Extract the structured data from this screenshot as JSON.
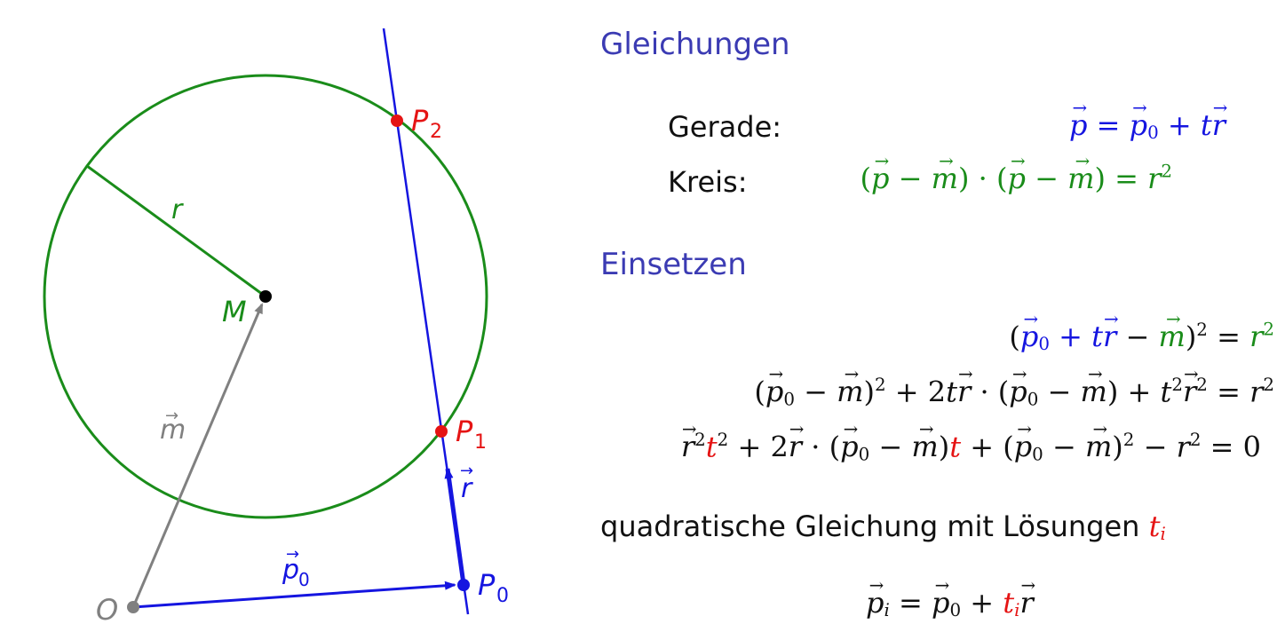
{
  "figure": {
    "labels": {
      "r": "r",
      "M": "M",
      "m": "m",
      "O": "O",
      "p0": "p",
      "p0_sub": "0",
      "P0": "P",
      "P0_sub": "0",
      "P1": "P",
      "P1_sub": "1",
      "P2": "P",
      "P2_sub": "2",
      "rvec": "r"
    },
    "colors": {
      "circle": "#1a8c1a",
      "line": "#1515e0",
      "points": "#e51414",
      "origin": "#808080",
      "center": "#000000"
    }
  },
  "sections": {
    "gleichungen": "Gleichungen",
    "einsetzen": "Einsetzen"
  },
  "equations": {
    "gerade_label": "Gerade:",
    "kreis_label": "Kreis:"
  },
  "text": {
    "quadratic_prefix": "quadratische Gleichung mit Lösungen"
  }
}
